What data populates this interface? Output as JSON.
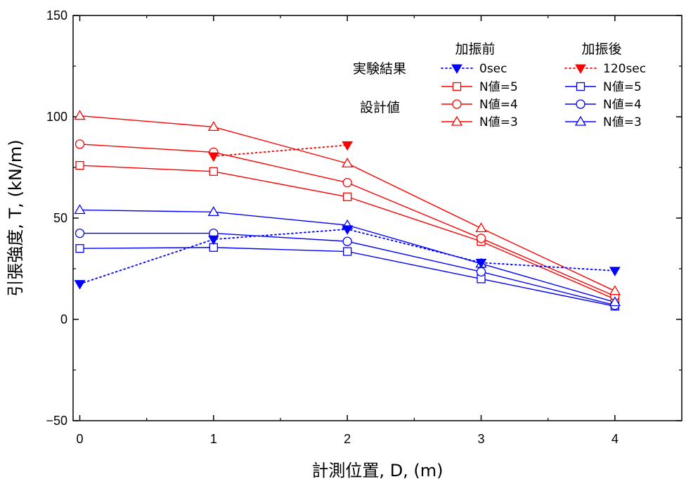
{
  "chart_data": {
    "type": "line",
    "xlabel": "計測位置, D, (m)",
    "ylabel": "引張強度, T, (kN/m)",
    "xlim": [
      -0.05,
      4.5
    ],
    "ylim": [
      -50,
      150
    ],
    "xticks": [
      0,
      1,
      2,
      3,
      4
    ],
    "yticks": [
      -50,
      0,
      50,
      100,
      150
    ],
    "grid": false,
    "legend": {
      "placement": "top-right",
      "col_headers": [
        "加振前",
        "加振後"
      ],
      "row_headers": [
        "実験結果",
        "設計値"
      ]
    },
    "series": [
      {
        "name": "0sec",
        "group": "加振前",
        "color": "#0000ff",
        "marker": "triangle-down-filled",
        "dash": "dot",
        "x": [
          0,
          1,
          2,
          3,
          4
        ],
        "y": [
          17.5,
          39.5,
          44.5,
          28,
          24
        ]
      },
      {
        "name": "120sec",
        "group": "加振後",
        "color": "#ff0000",
        "marker": "triangle-down-filled",
        "dash": "dot",
        "x": [
          1,
          2
        ],
        "y": [
          80.5,
          86
        ]
      },
      {
        "name": "N値=5",
        "group": "加振前",
        "color": "#ff0000",
        "marker": "square",
        "dash": "solid",
        "x": [
          0,
          1,
          2,
          3,
          4
        ],
        "y": [
          76,
          73,
          60.5,
          38.5,
          10
        ]
      },
      {
        "name": "N値=4",
        "group": "加振前",
        "color": "#ff0000",
        "marker": "circle",
        "dash": "solid",
        "x": [
          0,
          1,
          2,
          3,
          4
        ],
        "y": [
          86.5,
          82.5,
          67.5,
          40,
          11.5
        ]
      },
      {
        "name": "N値=3",
        "group": "加振前",
        "color": "#ff0000",
        "marker": "triangle-up",
        "dash": "solid",
        "x": [
          0,
          1,
          2,
          3,
          4
        ],
        "y": [
          100.5,
          95,
          77,
          45,
          14
        ]
      },
      {
        "name": "N値=5",
        "group": "加振後",
        "color": "#0000ff",
        "marker": "square",
        "dash": "solid",
        "x": [
          0,
          1,
          2,
          3,
          4
        ],
        "y": [
          35,
          35.5,
          33.5,
          20,
          6.5
        ]
      },
      {
        "name": "N値=4",
        "group": "加振後",
        "color": "#0000ff",
        "marker": "circle",
        "dash": "solid",
        "x": [
          0,
          1,
          2,
          3,
          4
        ],
        "y": [
          42.5,
          42.5,
          38.5,
          23.5,
          7
        ]
      },
      {
        "name": "N値=3",
        "group": "加振後",
        "color": "#0000ff",
        "marker": "triangle-up",
        "dash": "solid",
        "x": [
          0,
          1,
          2,
          3,
          4
        ],
        "y": [
          54,
          53,
          46.5,
          27.5,
          8.5
        ]
      }
    ]
  }
}
